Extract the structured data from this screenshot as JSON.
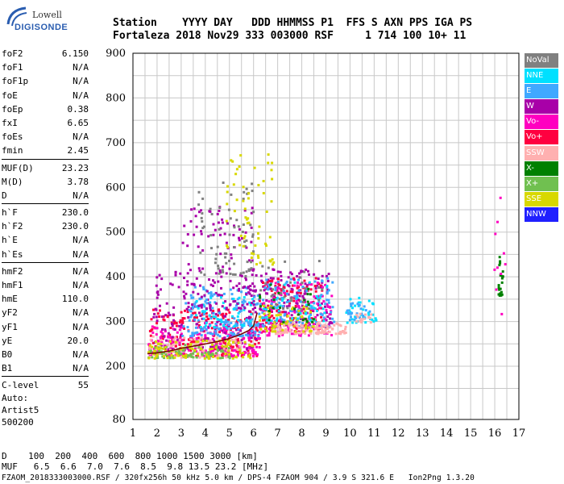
{
  "logo": {
    "top_text": "Lowell",
    "bottom_text": "DIGISONDE"
  },
  "header": {
    "line1": "Station    YYYY DAY   DDD HHMMSS P1  FFS S AXN PPS IGA PS",
    "line2": "Fortaleza 2018 Nov29 333 003000 RSF     1 714 100 10+ 11"
  },
  "params": [
    {
      "label": "foF2",
      "value": "6.150"
    },
    {
      "label": "foF1",
      "value": "N/A"
    },
    {
      "label": "foF1p",
      "value": "N/A"
    },
    {
      "label": "foE",
      "value": "N/A"
    },
    {
      "label": "foEp",
      "value": "0.38"
    },
    {
      "label": "fxI",
      "value": "6.65"
    },
    {
      "label": "foEs",
      "value": "N/A"
    },
    {
      "label": "fmin",
      "value": "2.45"
    },
    {
      "sep": true
    },
    {
      "label": "MUF(D)",
      "value": "23.23"
    },
    {
      "label": "M(D)",
      "value": "3.78"
    },
    {
      "label": "D",
      "value": "N/A"
    },
    {
      "sep": true
    },
    {
      "label": "h`F",
      "value": "230.0"
    },
    {
      "label": "h`F2",
      "value": "230.0"
    },
    {
      "label": "h`E",
      "value": "N/A"
    },
    {
      "label": "h`Es",
      "value": "N/A"
    },
    {
      "sep": true
    },
    {
      "label": "hmF2",
      "value": "N/A"
    },
    {
      "label": "hmF1",
      "value": "N/A"
    },
    {
      "label": "hmE",
      "value": "110.0"
    },
    {
      "label": "yF2",
      "value": "N/A"
    },
    {
      "label": "yF1",
      "value": "N/A"
    },
    {
      "label": "yE",
      "value": "20.0"
    },
    {
      "label": "B0",
      "value": "N/A"
    },
    {
      "label": "B1",
      "value": "N/A"
    },
    {
      "sep": true
    },
    {
      "label": "C-level",
      "value": "55"
    }
  ],
  "autoscaling": {
    "line1": "Auto:",
    "line2": "Artist5",
    "line3": "500200"
  },
  "legend": [
    {
      "label": "NoVal",
      "color": "#808080"
    },
    {
      "label": "NNE",
      "color": "#00e0ff"
    },
    {
      "label": "E",
      "color": "#40a8ff"
    },
    {
      "label": "W",
      "color": "#a800a8"
    },
    {
      "label": "Vo-",
      "color": "#ff00c0"
    },
    {
      "label": "Vo+",
      "color": "#ff0040"
    },
    {
      "label": "SSW",
      "color": "#ffb0b0"
    },
    {
      "label": "X-",
      "color": "#008000"
    },
    {
      "label": "X+",
      "color": "#70c050"
    },
    {
      "label": "SSE",
      "color": "#d8d800"
    },
    {
      "label": "NNW",
      "color": "#2020ff"
    }
  ],
  "bottom": {
    "d_line": "D    100  200  400  600  800 1000 1500 3000 [km]",
    "muf_line": "MUF   6.5  6.6  7.0  7.6  8.5  9.8 13.5 23.2 [MHz]",
    "footer": "FZAOM_2018333003000.RSF / 320fx256h 50 kHz 5.0 km / DPS-4 FZAOM 904 / 3.9 S 321.6 E   Ion2Png 1.3.20"
  },
  "chart_data": {
    "type": "scatter",
    "xlim": [
      1,
      17
    ],
    "ylim": [
      80,
      900
    ],
    "x_ticks": [
      1,
      2,
      3,
      4,
      5,
      6,
      7,
      8,
      9,
      10,
      11,
      12,
      13,
      14,
      15,
      16,
      17
    ],
    "y_ticks": [
      80,
      200,
      300,
      400,
      500,
      600,
      700,
      800,
      900
    ],
    "x_tick_labels": [
      "1",
      "2",
      "3",
      "4",
      "5",
      "6",
      "7",
      "8",
      "9",
      "10",
      "11",
      "12",
      "13",
      "14",
      "15",
      "16",
      "17"
    ],
    "y_tick_labels": [
      "80",
      "200",
      "300",
      "400",
      "500",
      "600",
      "700",
      "800",
      "900"
    ],
    "grid": true,
    "trace_color": "#7a0000",
    "trace": [
      [
        1.6,
        228
      ],
      [
        2.0,
        230
      ],
      [
        2.5,
        234
      ],
      [
        3.0,
        240
      ],
      [
        3.5,
        245
      ],
      [
        4.0,
        250
      ],
      [
        4.5,
        255
      ],
      [
        5.0,
        262
      ],
      [
        5.5,
        272
      ],
      [
        5.8,
        280
      ],
      [
        6.0,
        290
      ],
      [
        6.15,
        320
      ]
    ],
    "clusters": [
      {
        "name": "Vo+",
        "color": "#ff0040",
        "n": 260,
        "x": [
          1.6,
          6.2
        ],
        "y": [
          225,
          330
        ]
      },
      {
        "name": "Vo-",
        "color": "#ff00c0",
        "n": 200,
        "x": [
          1.6,
          6.3
        ],
        "y": [
          225,
          300
        ]
      },
      {
        "name": "W",
        "color": "#a800a8",
        "n": 180,
        "x": [
          1.8,
          6.2
        ],
        "y": [
          240,
          420
        ]
      },
      {
        "name": "E",
        "color": "#40a8ff",
        "n": 160,
        "x": [
          3.0,
          6.2
        ],
        "y": [
          270,
          380
        ]
      },
      {
        "name": "NNE",
        "color": "#00e0ff",
        "n": 50,
        "x": [
          3.5,
          6.0
        ],
        "y": [
          290,
          360
        ]
      },
      {
        "name": "SSW",
        "color": "#ffb0b0",
        "n": 90,
        "x": [
          1.6,
          5.5
        ],
        "y": [
          222,
          270
        ]
      },
      {
        "name": "X+",
        "color": "#70c050",
        "n": 80,
        "x": [
          1.6,
          5.0
        ],
        "y": [
          220,
          250
        ]
      },
      {
        "name": "SSE",
        "color": "#d8d800",
        "n": 90,
        "x": [
          1.6,
          6.0
        ],
        "y": [
          220,
          260
        ]
      },
      {
        "name": "W-high",
        "color": "#a800a8",
        "n": 120,
        "x": [
          3.0,
          6.0
        ],
        "y": [
          330,
          560
        ]
      },
      {
        "name": "NoVal-high",
        "color": "#808080",
        "n": 70,
        "x": [
          3.6,
          6.0
        ],
        "y": [
          400,
          620
        ]
      },
      {
        "name": "SSE-high",
        "color": "#d8d800",
        "n": 60,
        "x": [
          4.8,
          6.8
        ],
        "y": [
          430,
          690
        ]
      },
      {
        "name": "F2-W",
        "color": "#a800a8",
        "n": 170,
        "x": [
          6.2,
          9.2
        ],
        "y": [
          290,
          420
        ]
      },
      {
        "name": "F2-Vo+",
        "color": "#ff0040",
        "n": 130,
        "x": [
          6.2,
          8.9
        ],
        "y": [
          280,
          400
        ]
      },
      {
        "name": "F2-Vo-",
        "color": "#ff00c0",
        "n": 110,
        "x": [
          6.2,
          9.2
        ],
        "y": [
          270,
          390
        ]
      },
      {
        "name": "F2-E",
        "color": "#40a8ff",
        "n": 110,
        "x": [
          6.2,
          9.3
        ],
        "y": [
          290,
          400
        ]
      },
      {
        "name": "F2-SSW",
        "color": "#ffb0b0",
        "n": 110,
        "x": [
          6.8,
          9.8
        ],
        "y": [
          275,
          300
        ]
      },
      {
        "name": "F2-SSE",
        "color": "#d8d800",
        "n": 60,
        "x": [
          6.2,
          8.5
        ],
        "y": [
          280,
          340
        ]
      },
      {
        "name": "F2-NNE",
        "color": "#00e0ff",
        "n": 40,
        "x": [
          6.3,
          9.0
        ],
        "y": [
          300,
          390
        ]
      },
      {
        "name": "F2-X-",
        "color": "#008000",
        "n": 25,
        "x": [
          6.2,
          8.5
        ],
        "y": [
          300,
          400
        ]
      },
      {
        "name": "F2-NoVal",
        "color": "#808080",
        "n": 30,
        "x": [
          6.2,
          8.8
        ],
        "y": [
          330,
          440
        ]
      },
      {
        "name": "NNE-right",
        "color": "#00e0ff",
        "n": 35,
        "x": [
          9.8,
          11.1
        ],
        "y": [
          300,
          360
        ]
      },
      {
        "name": "E-right",
        "color": "#40a8ff",
        "n": 25,
        "x": [
          9.8,
          10.8
        ],
        "y": [
          305,
          350
        ]
      },
      {
        "name": "SSW-right",
        "color": "#ffb0b0",
        "n": 15,
        "x": [
          10.2,
          10.9
        ],
        "y": [
          300,
          320
        ]
      },
      {
        "name": "X-right",
        "color": "#008000",
        "n": 22,
        "x": [
          16.1,
          16.3
        ],
        "y": [
          360,
          450
        ]
      },
      {
        "name": "misc-right",
        "color": "#ff00c0",
        "n": 10,
        "x": [
          15.8,
          16.4
        ],
        "y": [
          290,
          600
        ]
      }
    ]
  }
}
